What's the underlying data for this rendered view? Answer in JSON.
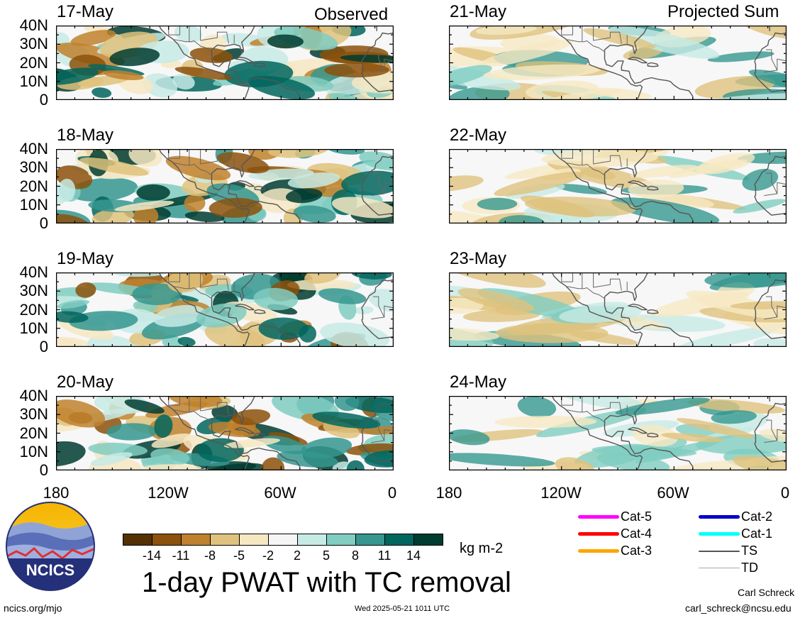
{
  "headers": {
    "left": "Observed",
    "right": "Projected Sum"
  },
  "panels": [
    {
      "date": "17-May",
      "col": 0,
      "row": 0
    },
    {
      "date": "18-May",
      "col": 0,
      "row": 1
    },
    {
      "date": "19-May",
      "col": 0,
      "row": 2
    },
    {
      "date": "20-May",
      "col": 0,
      "row": 3
    },
    {
      "date": "21-May",
      "col": 1,
      "row": 0
    },
    {
      "date": "22-May",
      "col": 1,
      "row": 1
    },
    {
      "date": "23-May",
      "col": 1,
      "row": 2
    },
    {
      "date": "24-May",
      "col": 1,
      "row": 3
    }
  ],
  "lat_ticks": [
    "40N",
    "30N",
    "20N",
    "10N",
    "0"
  ],
  "lon_ticks": [
    "180",
    "120W",
    "60W",
    "0"
  ],
  "colorbar": {
    "colors": [
      "#543005",
      "#8c510a",
      "#bf812d",
      "#dfc27d",
      "#f6e8c3",
      "#f5f5f5",
      "#c7eae5",
      "#80cdc1",
      "#35978f",
      "#01665e",
      "#003c30"
    ],
    "labels": [
      "-14",
      "-11",
      "-8",
      "-5",
      "-2",
      "2",
      "5",
      "8",
      "11",
      "14"
    ],
    "units": "kg m-2"
  },
  "title": "1-day PWAT with TC removal",
  "logo_text": "NCICS",
  "legend": [
    {
      "label": "Cat-5",
      "color": "#ff00ff"
    },
    {
      "label": "Cat-4",
      "color": "#ff0000"
    },
    {
      "label": "Cat-3",
      "color": "#ffa500"
    },
    {
      "label": "Cat-2",
      "color": "#0000cc"
    },
    {
      "label": "Cat-1",
      "color": "#00ffff"
    },
    {
      "label": "TS",
      "color": "#555555"
    },
    {
      "label": "TD",
      "color": "#aaaaaa"
    }
  ],
  "footer": {
    "url": "ncics.org/mjo",
    "timestamp": "Wed 2025-05-21 1011 UTC",
    "author": "Carl Schreck",
    "email": "carl_schreck@ncsu.edu"
  }
}
